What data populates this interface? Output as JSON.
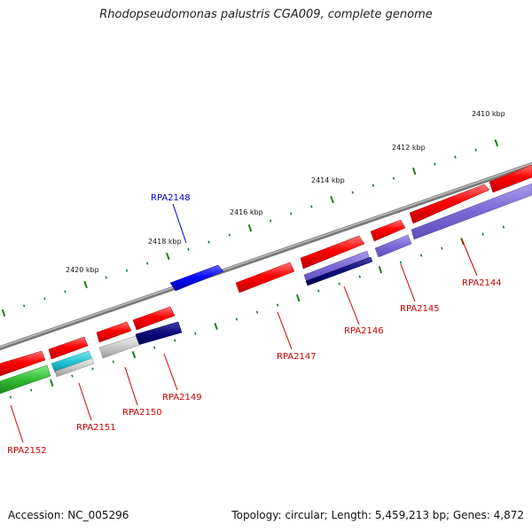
{
  "title": "Rhodopseudomonas palustris CGA009, complete genome",
  "footer": {
    "accession": "Accession: NC_005296",
    "summary": "Topology: circular; Length: 5,459,213 bp; Genes: 4,872"
  },
  "ticks": [
    {
      "label": "2410 kbp"
    },
    {
      "label": "2412 kbp"
    },
    {
      "label": "2414 kbp"
    },
    {
      "label": "2416 kbp"
    },
    {
      "label": "2418 kbp"
    },
    {
      "label": "2420 kbp"
    }
  ],
  "genes": [
    {
      "label": "RPA2144",
      "color": "#cc0000"
    },
    {
      "label": "RPA2145",
      "color": "#cc0000"
    },
    {
      "label": "RPA2146",
      "color": "#cc0000"
    },
    {
      "label": "RPA2147",
      "color": "#cc0000"
    },
    {
      "label": "RPA2148",
      "color": "#0000cc"
    },
    {
      "label": "RPA2149",
      "color": "#cc0000"
    },
    {
      "label": "RPA2150",
      "color": "#cc0000"
    },
    {
      "label": "RPA2151",
      "color": "#cc0000"
    },
    {
      "label": "RPA2152",
      "color": "#cc0000"
    }
  ],
  "colors": {
    "backbone": "#888888",
    "tick": "#1e7a1e",
    "forward_gene": "#ff0000",
    "reverse_gene": "#1010ff",
    "cog_purple": "#7b68d6",
    "cog_navy": "#0a0a7a",
    "cog_cyan": "#22c4d4",
    "cog_gray": "#c8c8c8",
    "cog_green": "#33bb33"
  }
}
